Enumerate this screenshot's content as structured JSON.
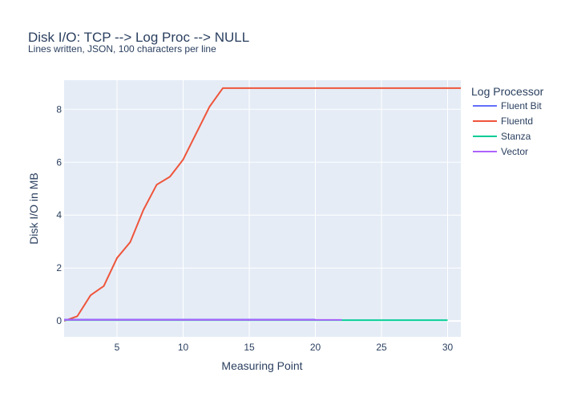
{
  "chart_data": {
    "type": "line",
    "title": "Disk I/O: TCP --> Log Proc --> NULL",
    "subtitle": "Lines written, JSON, 100 characters per line",
    "xlabel": "Measuring Point",
    "ylabel": "Disk I/O in MB",
    "xlim": [
      1,
      31
    ],
    "ylim": [
      -0.6,
      9.1
    ],
    "x_ticks": [
      5,
      10,
      15,
      20,
      25,
      30
    ],
    "y_ticks": [
      0,
      2,
      4,
      6,
      8
    ],
    "grid": true,
    "legend_title": "Log Processor",
    "legend_position": "top-right outside",
    "series": [
      {
        "name": "Fluent Bit",
        "color": "#636efa",
        "x": [
          1,
          2,
          3,
          4,
          5,
          6,
          7,
          8,
          9,
          10,
          11,
          12,
          13,
          14,
          15,
          16,
          17,
          18,
          19,
          20
        ],
        "y": [
          0.05,
          0.05,
          0.05,
          0.05,
          0.05,
          0.05,
          0.05,
          0.05,
          0.05,
          0.05,
          0.05,
          0.05,
          0.05,
          0.05,
          0.05,
          0.05,
          0.05,
          0.05,
          0.05,
          0.05
        ]
      },
      {
        "name": "Fluentd",
        "color": "#ef553b",
        "x": [
          1,
          2,
          3,
          4,
          5,
          6,
          7,
          8,
          9,
          10,
          11,
          12,
          13,
          14,
          15,
          16,
          17,
          18,
          19,
          20,
          21,
          22,
          23,
          24,
          25,
          26,
          27,
          28,
          29,
          30,
          31
        ],
        "y": [
          0.0,
          0.18,
          0.97,
          1.32,
          2.38,
          2.98,
          4.2,
          5.15,
          5.45,
          6.1,
          7.1,
          8.1,
          8.8,
          8.8,
          8.8,
          8.8,
          8.8,
          8.8,
          8.8,
          8.8,
          8.8,
          8.8,
          8.8,
          8.8,
          8.8,
          8.8,
          8.8,
          8.8,
          8.8,
          8.8,
          8.8
        ]
      },
      {
        "name": "Stanza",
        "color": "#00cc96",
        "x": [
          1,
          2,
          3,
          4,
          5,
          6,
          7,
          8,
          9,
          10,
          11,
          12,
          13,
          14,
          15,
          16,
          17,
          18,
          19,
          20,
          21,
          22,
          23,
          24,
          25,
          26,
          27,
          28,
          29,
          30
        ],
        "y": [
          0.03,
          0.03,
          0.03,
          0.03,
          0.03,
          0.03,
          0.03,
          0.03,
          0.03,
          0.03,
          0.03,
          0.03,
          0.03,
          0.03,
          0.03,
          0.03,
          0.03,
          0.03,
          0.03,
          0.03,
          0.03,
          0.03,
          0.03,
          0.03,
          0.03,
          0.03,
          0.03,
          0.03,
          0.03,
          0.03
        ]
      },
      {
        "name": "Vector",
        "color": "#ab63fa",
        "x": [
          1,
          2,
          3,
          4,
          5,
          6,
          7,
          8,
          9,
          10,
          11,
          12,
          13,
          14,
          15,
          16,
          17,
          18,
          19,
          20,
          21,
          22
        ],
        "y": [
          0.04,
          0.04,
          0.04,
          0.04,
          0.04,
          0.04,
          0.04,
          0.04,
          0.04,
          0.04,
          0.04,
          0.04,
          0.04,
          0.04,
          0.04,
          0.04,
          0.04,
          0.04,
          0.04,
          0.04,
          0.04,
          0.04
        ]
      }
    ]
  }
}
